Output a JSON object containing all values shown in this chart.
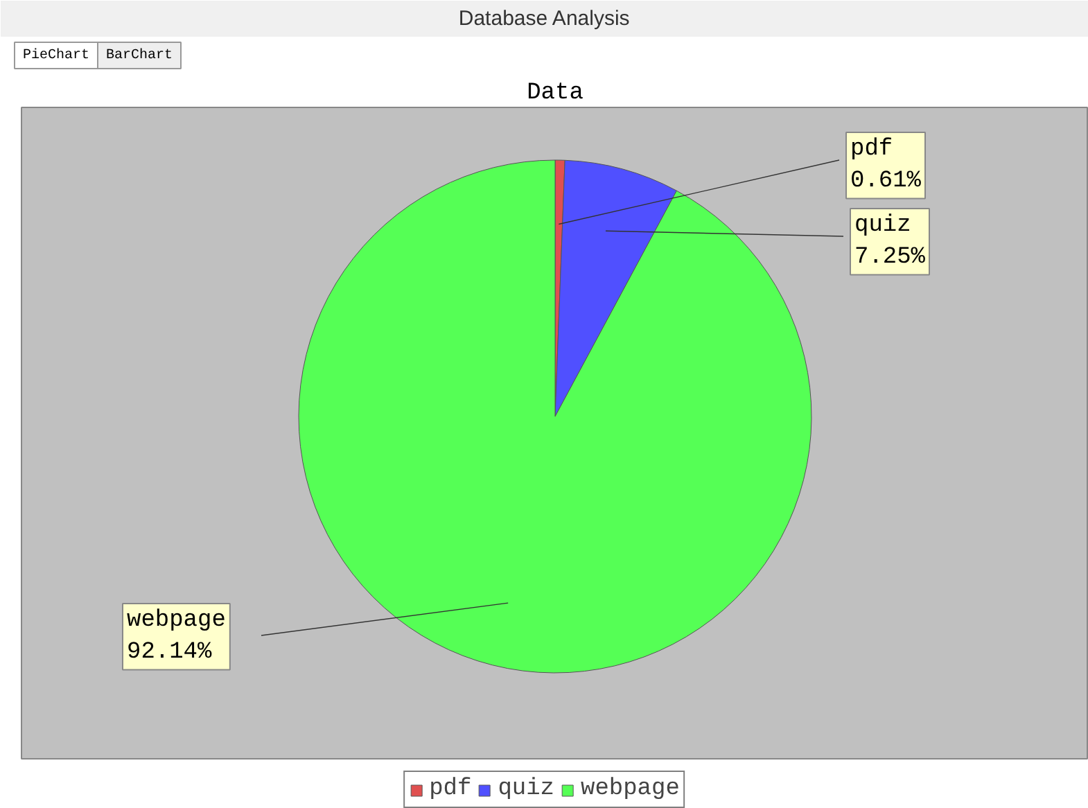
{
  "chart_data": {
    "type": "pie",
    "title": "Data",
    "categories": [
      "pdf",
      "quiz",
      "webpage"
    ],
    "values": [
      0.61,
      7.25,
      92.14
    ],
    "colors": [
      "#e05050",
      "#5050ff",
      "#55ff55"
    ],
    "value_labels": [
      "0.61%",
      "7.25%",
      "92.14%"
    ],
    "legend": "bottom",
    "annotations": [
      "Database Analysis",
      "PieChart",
      "BarChart"
    ]
  }
}
